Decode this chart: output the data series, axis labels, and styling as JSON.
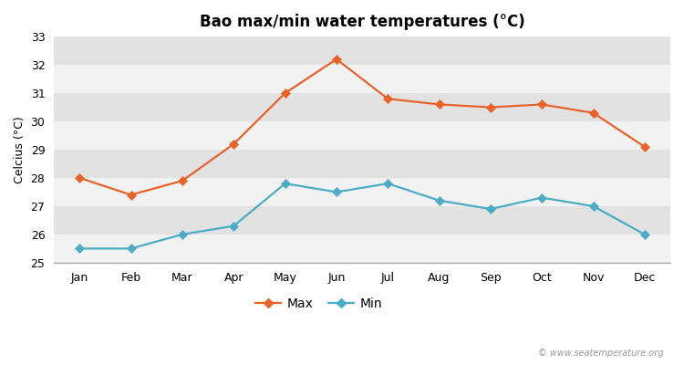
{
  "title": "Bao max/min water temperatures (°C)",
  "ylabel": "Celcius (°C)",
  "months": [
    "Jan",
    "Feb",
    "Mar",
    "Apr",
    "May",
    "Jun",
    "Jul",
    "Aug",
    "Sep",
    "Oct",
    "Nov",
    "Dec"
  ],
  "max_temps": [
    28.0,
    27.4,
    27.9,
    29.2,
    31.0,
    32.2,
    30.8,
    30.6,
    30.5,
    30.6,
    30.3,
    29.1
  ],
  "min_temps": [
    25.5,
    25.5,
    26.0,
    26.3,
    27.8,
    27.5,
    27.8,
    27.2,
    26.9,
    27.3,
    27.0,
    26.0
  ],
  "max_color": "#e8622a",
  "min_color": "#4bacc6",
  "fig_bg_color": "#ffffff",
  "plot_bg_color": "#e8e8e8",
  "band_light": "#f2f2f2",
  "band_dark": "#e2e2e2",
  "ylim_min": 25,
  "ylim_max": 33,
  "yticks": [
    25,
    26,
    27,
    28,
    29,
    30,
    31,
    32,
    33
  ],
  "watermark": "© www.seatemperature.org",
  "legend_max": "Max",
  "legend_min": "Min",
  "title_fontsize": 12,
  "label_fontsize": 9,
  "tick_fontsize": 9,
  "marker": "D",
  "linewidth": 1.6,
  "markersize": 5
}
